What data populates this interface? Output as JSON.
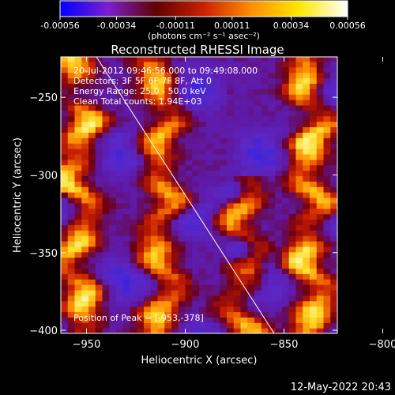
{
  "chart_data": {
    "type": "heatmap",
    "title": "Reconstructed RHESSI Image",
    "xlabel": "Heliocentric X (arcsec)",
    "ylabel": "Heliocentric Y (arcsec)",
    "xlim": [
      -963,
      -823
    ],
    "ylim": [
      -402,
      -224
    ],
    "xticks": [
      -950,
      -900,
      -850,
      -800
    ],
    "yticks": [
      -400,
      -350,
      -300,
      -250
    ],
    "colorbar": {
      "range": [
        -0.00056,
        0.00056
      ],
      "ticks": [
        "-0.00056",
        "-0.00034",
        "-0.00011",
        "0.00011",
        "0.00034",
        "0.00056"
      ],
      "tick_values": [
        -0.00056,
        -0.00034,
        -0.00011,
        0.00011,
        0.00034,
        0.00056
      ],
      "unit_label": "(photons cm⁻² s⁻¹ asec⁻²)",
      "colormap": [
        "#0000ff",
        "#7a1fd0",
        "#600000",
        "#cc2000",
        "#ff9000",
        "#ffe800",
        "#ffffff"
      ]
    },
    "annotations": [
      "20-Jul-2012 09:46:56.000 to 09:49:08.000",
      "Detectors: 3F 5F 6F 7F 8F, Att 0",
      "Energy Range: 25.0 - 50.0 keV",
      "Clean     Total counts: 1.94E+03"
    ],
    "peak_label": "Position of Peak = [-953,-378]",
    "peak": [
      -953,
      -378
    ],
    "limb_line": [
      [
        -945,
        -224
      ],
      [
        -855,
        -402
      ]
    ],
    "bright_ridges": [
      {
        "x": -955,
        "y": [
          -402,
          -224
        ],
        "level": 0.9
      },
      {
        "x": -912,
        "y": [
          -402,
          -224
        ],
        "level": 0.8
      },
      {
        "x": -870,
        "y": [
          -402,
          -300
        ],
        "level": 0.75
      },
      {
        "x": -836,
        "y": [
          -402,
          -224
        ],
        "level": 0.95
      }
    ],
    "dark_spots": [
      [
        -876,
        -310
      ],
      [
        -872,
        -348
      ]
    ]
  },
  "footer": {
    "timestamp": "12-May-2022 20:43"
  }
}
